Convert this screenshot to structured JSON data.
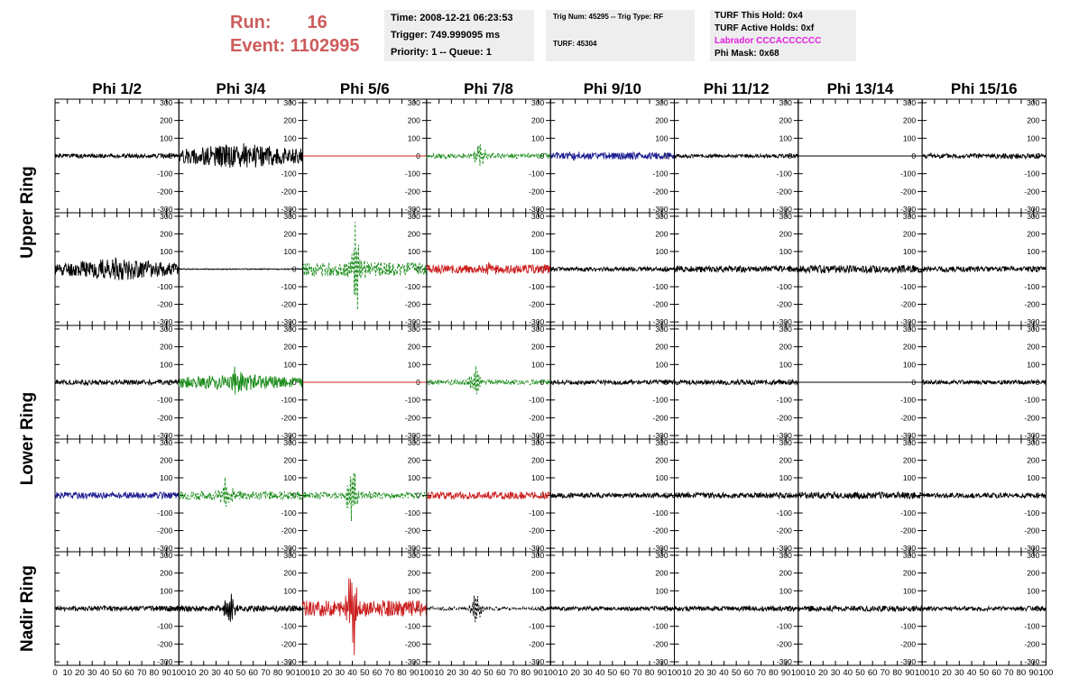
{
  "header": {
    "run_label": "Run:",
    "run_value": "16",
    "event_label": "Event:",
    "event_value": "1102995",
    "time": "Time: 2008-12-21 06:23:53",
    "trigger": "Trigger: 749.999095 ms",
    "priority": "Priority: 1 -- Queue: 1",
    "trig_num": "Trig Num: 45295 -- Trig Type: RF",
    "turf": "TURF: 45304",
    "turf_hold": "TURF This Hold: 0x4",
    "turf_active": "TURF Active Holds: 0xf",
    "labrador": "Labrador CCCACCCCCC",
    "phi_mask": "Phi Mask: 0x68"
  },
  "colors": {
    "title_red": "#cd5c5c",
    "labrador_magenta": "#e020e0",
    "info_bg": "#eeeeee",
    "black": "#000000",
    "green": "#1a8c1a",
    "red": "#cc2020",
    "blue": "#1a1a90"
  },
  "chart_data": {
    "type": "line",
    "columns": [
      "Phi 1/2",
      "Phi 3/4",
      "Phi 5/6",
      "Phi 7/8",
      "Phi 9/10",
      "Phi 11/12",
      "Phi 13/14",
      "Phi 15/16"
    ],
    "row_labels": [
      {
        "text": "Upper Ring",
        "rows": [
          0,
          1
        ]
      },
      {
        "text": "Lower Ring",
        "rows": [
          2,
          3
        ]
      },
      {
        "text": "Nadir Ring",
        "rows": [
          4
        ]
      }
    ],
    "xlim": [
      0,
      100
    ],
    "ylim": [
      -320,
      320
    ],
    "y_ticks": [
      -300,
      -200,
      -100,
      0,
      100,
      200,
      300
    ],
    "x_ticks": [
      0,
      10,
      20,
      30,
      40,
      50,
      60,
      70,
      80,
      90,
      100
    ],
    "panels": [
      [
        {
          "color": "black",
          "style": "solid",
          "amp": 12,
          "burst": 0,
          "center": 50,
          "seed": 1
        },
        {
          "color": "black",
          "style": "solid",
          "amp": 50,
          "center": 50,
          "burst": 12,
          "seed": 2,
          "profile": "wide"
        },
        {
          "color": "red",
          "style": "solid",
          "amp": 0,
          "burst": 0,
          "center": 50,
          "seed": 3
        },
        {
          "color": "green",
          "style": "dashed",
          "amp": 15,
          "burst": 80,
          "center": 43,
          "seed": 4
        },
        {
          "color": "blue",
          "style": "solid",
          "amp": 20,
          "burst": 25,
          "center": 20,
          "seed": 5
        },
        {
          "color": "black",
          "style": "solid",
          "amp": 10,
          "burst": 0,
          "center": 50,
          "seed": 6
        },
        {
          "color": "black",
          "style": "solid",
          "amp": 0,
          "burst": 0,
          "center": 50,
          "seed": 7
        },
        {
          "color": "black",
          "style": "solid",
          "amp": 14,
          "burst": 0,
          "center": 50,
          "seed": 8
        }
      ],
      [
        {
          "color": "black",
          "style": "solid",
          "amp": 45,
          "burst": 0,
          "center": 50,
          "seed": 11,
          "profile": "wide"
        },
        {
          "color": "black",
          "style": "solid",
          "amp": 3,
          "burst": 0,
          "center": 50,
          "seed": 12
        },
        {
          "color": "green",
          "style": "dashed",
          "amp": 40,
          "burst": 260,
          "center": 43,
          "seed": 13
        },
        {
          "color": "red",
          "style": "solid",
          "amp": 25,
          "burst": 35,
          "center": 50,
          "seed": 14
        },
        {
          "color": "black",
          "style": "solid",
          "amp": 12,
          "burst": 0,
          "center": 50,
          "seed": 15
        },
        {
          "color": "black",
          "style": "solid",
          "amp": 18,
          "burst": 0,
          "center": 50,
          "seed": 16
        },
        {
          "color": "black",
          "style": "solid",
          "amp": 22,
          "burst": 0,
          "center": 50,
          "seed": 17
        },
        {
          "color": "black",
          "style": "solid",
          "amp": 16,
          "burst": 0,
          "center": 50,
          "seed": 18
        }
      ],
      [
        {
          "color": "black",
          "style": "solid",
          "amp": 14,
          "burst": 0,
          "center": 50,
          "seed": 21
        },
        {
          "color": "green",
          "style": "solid",
          "amp": 35,
          "burst": 55,
          "center": 47,
          "seed": 22,
          "profile": "wide"
        },
        {
          "color": "red",
          "style": "solid",
          "amp": 0,
          "burst": 0,
          "center": 50,
          "seed": 23
        },
        {
          "color": "green",
          "style": "dashed",
          "amp": 15,
          "burst": 100,
          "center": 40,
          "seed": 24
        },
        {
          "color": "black",
          "style": "solid",
          "amp": 13,
          "burst": 0,
          "center": 50,
          "seed": 25
        },
        {
          "color": "black",
          "style": "solid",
          "amp": 14,
          "burst": 0,
          "center": 50,
          "seed": 26
        },
        {
          "color": "black",
          "style": "solid",
          "amp": 0,
          "burst": 0,
          "center": 50,
          "seed": 27
        },
        {
          "color": "black",
          "style": "solid",
          "amp": 12,
          "burst": 0,
          "center": 50,
          "seed": 28
        }
      ],
      [
        {
          "color": "blue",
          "style": "solid",
          "amp": 18,
          "burst": 0,
          "center": 50,
          "seed": 31
        },
        {
          "color": "green",
          "style": "dashed",
          "amp": 25,
          "burst": 120,
          "center": 38,
          "seed": 32
        },
        {
          "color": "green",
          "style": "dashed",
          "amp": 20,
          "burst": 200,
          "center": 40,
          "seed": 33
        },
        {
          "color": "red",
          "style": "solid",
          "amp": 22,
          "burst": 0,
          "center": 50,
          "seed": 34
        },
        {
          "color": "black",
          "style": "solid",
          "amp": 14,
          "burst": 0,
          "center": 50,
          "seed": 35
        },
        {
          "color": "black",
          "style": "solid",
          "amp": 16,
          "burst": 0,
          "center": 50,
          "seed": 36
        },
        {
          "color": "black",
          "style": "solid",
          "amp": 20,
          "burst": 0,
          "center": 50,
          "seed": 37
        },
        {
          "color": "black",
          "style": "solid",
          "amp": 14,
          "burst": 0,
          "center": 50,
          "seed": 38
        }
      ],
      [
        {
          "color": "black",
          "style": "solid",
          "amp": 15,
          "burst": 0,
          "center": 50,
          "seed": 41
        },
        {
          "color": "black",
          "style": "solid",
          "amp": 18,
          "burst": 100,
          "center": 40,
          "seed": 42
        },
        {
          "color": "red",
          "style": "solid",
          "amp": 45,
          "burst": 300,
          "center": 40,
          "seed": 43
        },
        {
          "color": "black",
          "style": "dashed",
          "amp": 10,
          "burst": 90,
          "center": 40,
          "seed": 44
        },
        {
          "color": "black",
          "style": "solid",
          "amp": 12,
          "burst": 0,
          "center": 50,
          "seed": 45
        },
        {
          "color": "black",
          "style": "solid",
          "amp": 14,
          "burst": 0,
          "center": 50,
          "seed": 46
        },
        {
          "color": "black",
          "style": "solid",
          "amp": 16,
          "burst": 0,
          "center": 50,
          "seed": 47
        },
        {
          "color": "black",
          "style": "solid",
          "amp": 13,
          "burst": 0,
          "center": 50,
          "seed": 48
        }
      ]
    ]
  }
}
